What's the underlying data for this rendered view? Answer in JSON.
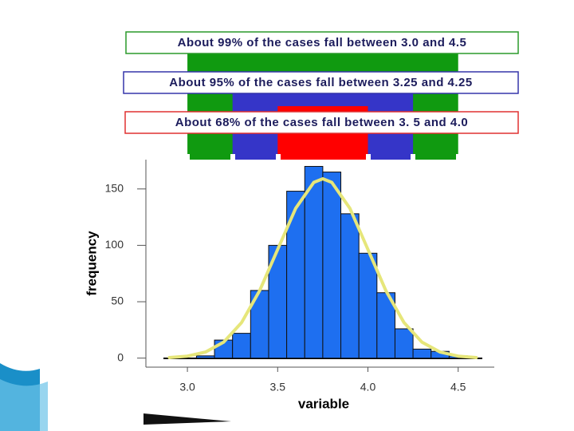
{
  "chart_data": {
    "type": "histogram",
    "x_label": "variable",
    "y_label": "frequency",
    "bins": [
      3.05,
      3.15,
      3.25,
      3.35,
      3.45,
      3.55,
      3.65,
      3.75,
      3.85,
      3.95,
      4.05,
      4.15,
      4.25,
      4.35,
      4.45,
      4.55
    ],
    "counts": [
      2,
      16,
      22,
      60,
      100,
      148,
      170,
      165,
      128,
      93,
      58,
      26,
      8,
      6,
      2
    ],
    "color": "#1e6ff0",
    "curve": {
      "color": "#e6e67a",
      "x": [
        2.9,
        3.0,
        3.1,
        3.2,
        3.3,
        3.4,
        3.5,
        3.6,
        3.7,
        3.75,
        3.8,
        3.9,
        4.0,
        4.1,
        4.2,
        4.3,
        4.4,
        4.5,
        4.6
      ],
      "values": [
        0.5,
        1.8,
        5.4,
        14.1,
        31.5,
        59.7,
        96.4,
        132.8,
        155.8,
        159,
        155.8,
        132.8,
        96.4,
        59.7,
        31.5,
        14.1,
        5.4,
        1.8,
        0.5
      ]
    },
    "xlim": [
      2.77,
      4.7
    ],
    "ylim": [
      -8,
      176
    ],
    "xticks": [
      {
        "value": 3.0,
        "label": "3.0"
      },
      {
        "value": 3.5,
        "label": "3.5"
      },
      {
        "value": 4.0,
        "label": "4.0"
      },
      {
        "value": 4.5,
        "label": "4.5"
      }
    ],
    "yticks": [
      0,
      50,
      100,
      150
    ],
    "bands": [
      {
        "label": "About 99% of the cases fall between 3.0 and 4.5",
        "color": "#109a10",
        "border": "#2a9a2a",
        "range": [
          3.0,
          4.5
        ]
      },
      {
        "label": "About 95% of the cases fall between 3.25 and 4.25",
        "color": "#3535c8",
        "border": "#3535aa",
        "range": [
          3.25,
          4.25
        ]
      },
      {
        "label": "About 68% of the cases fall between 3. 5 and 4.0",
        "color": "#ff0000",
        "border": "#e03030",
        "range": [
          3.5,
          4.0
        ]
      }
    ]
  }
}
